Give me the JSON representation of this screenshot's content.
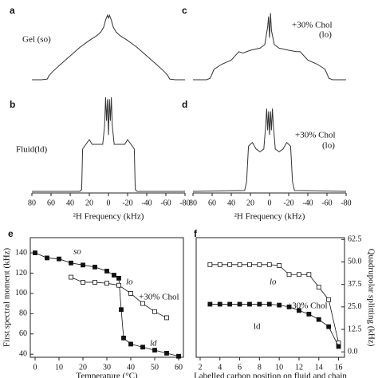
{
  "chart_data": [
    {
      "type": "line",
      "label": "a",
      "annotations": [
        "Gel (so)"
      ],
      "xlim": [
        80,
        -80
      ],
      "ylim": [
        0,
        100
      ],
      "series": [
        {
          "color": "#333333",
          "x": [
            80,
            70,
            64,
            62,
            58,
            50,
            40,
            30,
            20,
            12,
            8,
            5,
            3,
            1,
            0,
            -1,
            -3,
            -5,
            -8,
            -12,
            -20,
            -30,
            -40,
            -50,
            -58,
            -62,
            -64,
            -70,
            -80
          ],
          "values": [
            0,
            0,
            1,
            6,
            12,
            22,
            34,
            46,
            56,
            63,
            68,
            75,
            85,
            92,
            88,
            92,
            85,
            75,
            68,
            63,
            56,
            46,
            34,
            22,
            12,
            6,
            1,
            0,
            0
          ]
        }
      ]
    },
    {
      "type": "line",
      "label": "b",
      "annotations": [
        "Fluid(ld)"
      ],
      "xlim": [
        80,
        -80
      ],
      "ylim": [
        0,
        100
      ],
      "xticks": [
        80,
        60,
        40,
        20,
        0,
        -20,
        -40,
        -60,
        -80
      ],
      "xlabel": "²H Frequency (kHz)",
      "series": [
        {
          "color": "#333333",
          "x": [
            80,
            30,
            28,
            27,
            25,
            20,
            17,
            12,
            6,
            4,
            3,
            2,
            1,
            0,
            -1,
            -2,
            -3,
            -4,
            -6,
            -12,
            -17,
            -20,
            -25,
            -27,
            -28,
            -30,
            -80
          ],
          "values": [
            0,
            0,
            2,
            45,
            48,
            55,
            50,
            50,
            50,
            70,
            100,
            75,
            98,
            60,
            98,
            75,
            100,
            70,
            50,
            50,
            50,
            55,
            48,
            45,
            2,
            0,
            0
          ]
        }
      ]
    },
    {
      "type": "line",
      "label": "c",
      "annotations": [
        "+30% Chol",
        "(lo)"
      ],
      "xlim": [
        80,
        -80
      ],
      "ylim": [
        0,
        100
      ],
      "series": [
        {
          "color": "#333333",
          "x": [
            80,
            66,
            62,
            58,
            50,
            40,
            32,
            28,
            20,
            10,
            5,
            2,
            1,
            0,
            -1,
            -2,
            -5,
            -10,
            -20,
            -28,
            -32,
            -40,
            -50,
            -58,
            -62,
            -66,
            -80
          ],
          "values": [
            0,
            0,
            2,
            15,
            22,
            28,
            40,
            38,
            42,
            45,
            50,
            75,
            90,
            60,
            95,
            70,
            50,
            45,
            42,
            40,
            40,
            28,
            22,
            15,
            2,
            0,
            0
          ]
        }
      ]
    },
    {
      "type": "line",
      "label": "d",
      "annotations": [
        "+30% Chol",
        "(lo)"
      ],
      "xlim": [
        80,
        -80
      ],
      "ylim": [
        0,
        100
      ],
      "xticks": [
        80,
        60,
        40,
        20,
        0,
        -20,
        -40,
        -60,
        -80
      ],
      "xlabel": "²H Frequency (kHz)",
      "series": [
        {
          "color": "#333333",
          "x": [
            80,
            26,
            24,
            22,
            18,
            14,
            10,
            6,
            4,
            3,
            2,
            1,
            0,
            -1,
            -2,
            -3,
            -4,
            -6,
            -10,
            -14,
            -18,
            -22,
            -24,
            -26,
            -80
          ],
          "values": [
            0,
            1,
            10,
            48,
            52,
            45,
            42,
            45,
            70,
            88,
            65,
            85,
            60,
            85,
            65,
            88,
            70,
            45,
            42,
            45,
            52,
            48,
            10,
            1,
            0
          ]
        }
      ]
    },
    {
      "type": "line",
      "label": "e",
      "annotations": [
        "so",
        "lo",
        "+30% Chol",
        "ld"
      ],
      "xlim": [
        -2,
        62
      ],
      "xticks": [
        0,
        10,
        20,
        30,
        40,
        50,
        60
      ],
      "xlabel": "Temperature (°C)",
      "ylim": [
        37,
        155
      ],
      "yticks": [
        40,
        60,
        80,
        100,
        120,
        140
      ],
      "ylabel": "First spectral moment (kHz)",
      "series": [
        {
          "marker": "filled-square",
          "color": "#111111",
          "x": [
            0,
            5,
            10,
            15,
            20,
            25,
            30,
            33,
            35,
            36,
            37,
            40,
            45,
            50,
            55,
            60
          ],
          "values": [
            140,
            135,
            134,
            130,
            128,
            126,
            122,
            118,
            115,
            84,
            56,
            50,
            47,
            44,
            41,
            38
          ]
        },
        {
          "marker": "open-square",
          "color": "#111111",
          "x": [
            15,
            20,
            25,
            30,
            35,
            40,
            45,
            50,
            55
          ],
          "values": [
            116,
            111,
            111,
            110,
            108,
            100,
            90,
            82,
            76
          ]
        }
      ]
    },
    {
      "type": "line",
      "label": "f",
      "annotations": [
        "lo",
        "+30% Chol",
        "ld"
      ],
      "xlim": [
        1.6,
        16.6
      ],
      "xticks": [
        2,
        4,
        6,
        8,
        10,
        12,
        14,
        16
      ],
      "xlabel": "Labelled carbon position on fluid and chain",
      "ylim": [
        -3,
        63.5
      ],
      "yticks": [
        {
          "value": 0,
          "label": "0.0"
        },
        12.5,
        {
          "value": 25,
          "label": "25.0"
        },
        37.5,
        {
          "value": 50,
          "label": "50.0"
        },
        62.5
      ],
      "ylabel": "Quadrupolar splitting (kHz)",
      "series": [
        {
          "marker": "open-square",
          "color": "#111111",
          "x": [
            3,
            4,
            5,
            6,
            7,
            8,
            9,
            10,
            11,
            12,
            13,
            14,
            15,
            16
          ],
          "values": [
            48.5,
            48.5,
            48.5,
            48.5,
            48.5,
            48.5,
            48.5,
            48,
            43,
            43,
            43,
            36,
            29,
            5
          ]
        },
        {
          "marker": "filled-square",
          "color": "#111111",
          "x": [
            3,
            4,
            5,
            6,
            7,
            8,
            9,
            10,
            11,
            12,
            13,
            14,
            15,
            16
          ],
          "values": [
            26.5,
            26.5,
            26.5,
            26.5,
            26.5,
            26.5,
            26.5,
            26,
            25,
            23,
            21,
            18,
            14,
            3
          ]
        }
      ]
    }
  ]
}
